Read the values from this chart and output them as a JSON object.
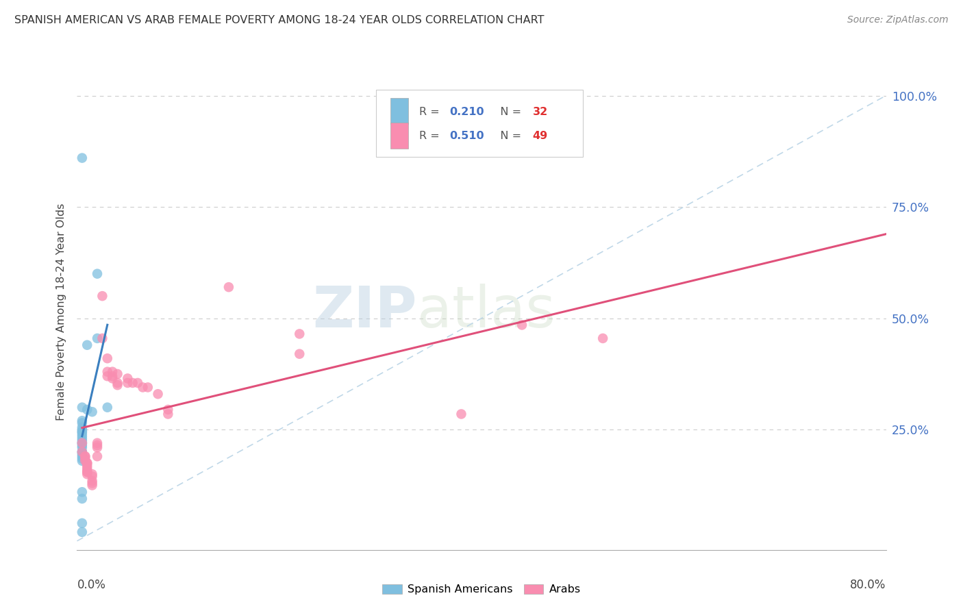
{
  "title": "SPANISH AMERICAN VS ARAB FEMALE POVERTY AMONG 18-24 YEAR OLDS CORRELATION CHART",
  "source": "Source: ZipAtlas.com",
  "ylabel": "Female Poverty Among 18-24 Year Olds",
  "xlim": [
    0.0,
    0.8
  ],
  "ylim": [
    -0.02,
    1.05
  ],
  "yticks": [
    0.0,
    0.25,
    0.5,
    0.75,
    1.0
  ],
  "ytick_labels": [
    "",
    "25.0%",
    "50.0%",
    "75.0%",
    "100.0%"
  ],
  "xticks": [
    0.0,
    0.1,
    0.2,
    0.3,
    0.4,
    0.5,
    0.6,
    0.7,
    0.8
  ],
  "legend_r1": "R = 0.210",
  "legend_n1": "N = 32",
  "legend_r2": "R = 0.510",
  "legend_n2": "N = 49",
  "spanish_color": "#7fbfdf",
  "arab_color": "#f98db0",
  "diagonal_color": "#c0d8e8",
  "blue_line_color": "#3a7fbf",
  "pink_line_color": "#e0507a",
  "watermark_zip": "ZIP",
  "watermark_atlas": "atlas",
  "spanish_americans": [
    [
      0.005,
      0.86
    ],
    [
      0.02,
      0.6
    ],
    [
      0.02,
      0.455
    ],
    [
      0.01,
      0.44
    ],
    [
      0.005,
      0.3
    ],
    [
      0.01,
      0.295
    ],
    [
      0.015,
      0.29
    ],
    [
      0.005,
      0.27
    ],
    [
      0.005,
      0.265
    ],
    [
      0.005,
      0.255
    ],
    [
      0.005,
      0.25
    ],
    [
      0.005,
      0.245
    ],
    [
      0.005,
      0.245
    ],
    [
      0.005,
      0.24
    ],
    [
      0.005,
      0.235
    ],
    [
      0.005,
      0.23
    ],
    [
      0.005,
      0.225
    ],
    [
      0.005,
      0.22
    ],
    [
      0.005,
      0.22
    ],
    [
      0.005,
      0.215
    ],
    [
      0.005,
      0.21
    ],
    [
      0.005,
      0.2
    ],
    [
      0.005,
      0.2
    ],
    [
      0.005,
      0.195
    ],
    [
      0.005,
      0.19
    ],
    [
      0.005,
      0.185
    ],
    [
      0.005,
      0.18
    ],
    [
      0.03,
      0.3
    ],
    [
      0.005,
      0.11
    ],
    [
      0.005,
      0.095
    ],
    [
      0.005,
      0.04
    ],
    [
      0.005,
      0.02
    ]
  ],
  "arabs": [
    [
      0.005,
      0.22
    ],
    [
      0.005,
      0.2
    ],
    [
      0.008,
      0.19
    ],
    [
      0.008,
      0.19
    ],
    [
      0.008,
      0.185
    ],
    [
      0.008,
      0.18
    ],
    [
      0.01,
      0.175
    ],
    [
      0.01,
      0.175
    ],
    [
      0.01,
      0.17
    ],
    [
      0.01,
      0.165
    ],
    [
      0.01,
      0.16
    ],
    [
      0.01,
      0.155
    ],
    [
      0.01,
      0.155
    ],
    [
      0.01,
      0.15
    ],
    [
      0.015,
      0.15
    ],
    [
      0.015,
      0.145
    ],
    [
      0.015,
      0.135
    ],
    [
      0.015,
      0.13
    ],
    [
      0.015,
      0.125
    ],
    [
      0.02,
      0.22
    ],
    [
      0.02,
      0.215
    ],
    [
      0.02,
      0.21
    ],
    [
      0.02,
      0.19
    ],
    [
      0.025,
      0.55
    ],
    [
      0.025,
      0.455
    ],
    [
      0.03,
      0.41
    ],
    [
      0.03,
      0.38
    ],
    [
      0.03,
      0.37
    ],
    [
      0.035,
      0.38
    ],
    [
      0.035,
      0.37
    ],
    [
      0.035,
      0.365
    ],
    [
      0.04,
      0.375
    ],
    [
      0.04,
      0.355
    ],
    [
      0.04,
      0.35
    ],
    [
      0.05,
      0.365
    ],
    [
      0.05,
      0.355
    ],
    [
      0.055,
      0.355
    ],
    [
      0.06,
      0.355
    ],
    [
      0.065,
      0.345
    ],
    [
      0.07,
      0.345
    ],
    [
      0.08,
      0.33
    ],
    [
      0.09,
      0.295
    ],
    [
      0.09,
      0.285
    ],
    [
      0.15,
      0.57
    ],
    [
      0.22,
      0.465
    ],
    [
      0.22,
      0.42
    ],
    [
      0.38,
      0.285
    ],
    [
      0.44,
      0.485
    ],
    [
      0.52,
      0.455
    ]
  ]
}
